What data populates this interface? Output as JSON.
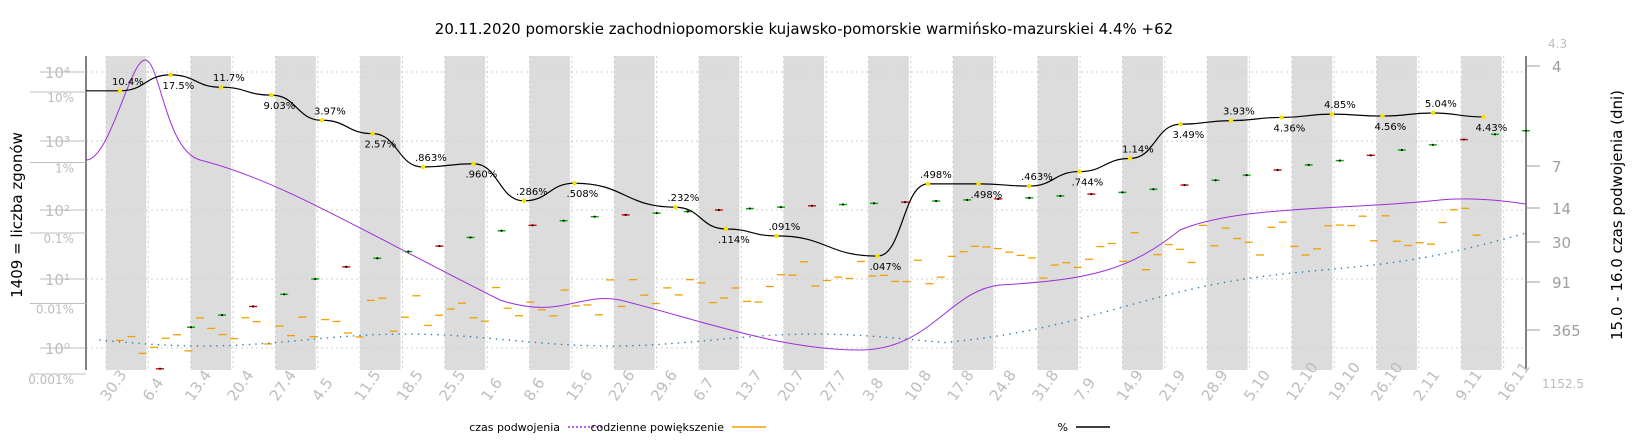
{
  "chart_data": {
    "type": "line",
    "title": "20.11.2020 pomorskie zachodniopomorskie kujawsko-pomorskie warmińsko-mazurskiei 4.4% +62",
    "ylabel_left": "1409 = liczba zgonów",
    "ylabel_right": "15.0 - 16.0 czas podwojenia (dni)",
    "x_categories": [
      "30.3",
      "6.4",
      "13.4",
      "20.4",
      "27.4",
      "4.5",
      "11.5",
      "18.5",
      "25.5",
      "1.6",
      "8.6",
      "15.6",
      "22.6",
      "29.6",
      "6.7",
      "13.7",
      "20.7",
      "27.7",
      "3.8",
      "10.8",
      "17.8",
      "24.8",
      "31.8",
      "7.9",
      "14.9",
      "21.9",
      "28.9",
      "5.10",
      "12.10",
      "19.10",
      "26.10",
      "2.11",
      "9.11",
      "16.11"
    ],
    "y_left_ticks": [
      "10^0",
      "10^1",
      "10^2",
      "10^3",
      "10^4"
    ],
    "y_pct_ticks": [
      "0.001%",
      "0.01%",
      "0.1%",
      "1%",
      "10%"
    ],
    "y_right_ticks": [
      "4",
      "7",
      "14",
      "30",
      "91",
      "365"
    ],
    "y_right_extra": [
      "4.3",
      "1152.5"
    ],
    "pct_series": {
      "name": "%",
      "color": "#000000",
      "labels": [
        "10.4%",
        "17.5%",
        "11.7%",
        "9.03%",
        "3.97%",
        "2.57%",
        ".863%",
        ".960%",
        ".286%",
        ".508%",
        ".232%",
        ".114%",
        ".091%",
        ".047%",
        ".498%",
        ".498%",
        ".463%",
        ".744%",
        "1.14%",
        "3.49%",
        "3.93%",
        "4.36%",
        "4.85%",
        "4.56%",
        "5.04%",
        "4.43%"
      ],
      "points": [
        {
          "x": 0.0,
          "v": "10.4%",
          "p": 10.4
        },
        {
          "x": 1.0,
          "v": "17.5%",
          "p": 17.5
        },
        {
          "x": 2.0,
          "v": "11.7%",
          "p": 11.7
        },
        {
          "x": 3.0,
          "v": "9.03%",
          "p": 9.03
        },
        {
          "x": 4.0,
          "v": "3.97%",
          "p": 3.97
        },
        {
          "x": 5.0,
          "v": "2.57%",
          "p": 2.57
        },
        {
          "x": 6.0,
          "v": ".863%",
          "p": 0.863
        },
        {
          "x": 7.0,
          "v": ".960%",
          "p": 0.96
        },
        {
          "x": 8.0,
          "v": ".286%",
          "p": 0.286
        },
        {
          "x": 9.0,
          "v": ".508%",
          "p": 0.508
        },
        {
          "x": 11.0,
          "v": ".232%",
          "p": 0.232
        },
        {
          "x": 12.0,
          "v": ".114%",
          "p": 0.114
        },
        {
          "x": 13.0,
          "v": ".091%",
          "p": 0.091
        },
        {
          "x": 15.0,
          "v": ".047%",
          "p": 0.047
        },
        {
          "x": 16.0,
          "v": ".498%",
          "p": 0.498
        },
        {
          "x": 17.0,
          "v": ".498%",
          "p": 0.498
        },
        {
          "x": 18.0,
          "v": ".463%",
          "p": 0.463
        },
        {
          "x": 19.0,
          "v": ".744%",
          "p": 0.744
        },
        {
          "x": 20.0,
          "v": "1.14%",
          "p": 1.14
        },
        {
          "x": 21.0,
          "v": "3.49%",
          "p": 3.49
        },
        {
          "x": 22.0,
          "v": "3.93%",
          "p": 3.93
        },
        {
          "x": 23.0,
          "v": "4.36%",
          "p": 4.36
        },
        {
          "x": 24.0,
          "v": "4.85%",
          "p": 4.85
        },
        {
          "x": 25.0,
          "v": "4.56%",
          "p": 4.56
        },
        {
          "x": 26.0,
          "v": "5.04%",
          "p": 5.04
        },
        {
          "x": 27.0,
          "v": "4.43%",
          "p": 4.43
        }
      ]
    },
    "deaths_series": {
      "name": "liczba zgonów",
      "approx_values": [
        0.5,
        2,
        3,
        4,
        6,
        10,
        15,
        20,
        25,
        30,
        40,
        50,
        60,
        70,
        80,
        85,
        90,
        95,
        100,
        105,
        110,
        115,
        120,
        125,
        130,
        135,
        140,
        145,
        150,
        160,
        170,
        180,
        200,
        230,
        270,
        320,
        380,
        450,
        520,
        620,
        740,
        880,
        1050,
        1250,
        1409
      ]
    },
    "doubling_series": {
      "name": "czas podwojenia",
      "color": "#9b30d9"
    },
    "daily_series": {
      "name": "codzienne powiększenie",
      "color": "#f0a000"
    },
    "legend": [
      {
        "label": "czas podwojenia",
        "color": "#9b30d9",
        "style": "dotted"
      },
      {
        "label": "codzienne powiększenie",
        "color": "#f0a000",
        "style": "solid"
      },
      {
        "label": "%",
        "color": "#000000",
        "style": "solid"
      }
    ]
  }
}
